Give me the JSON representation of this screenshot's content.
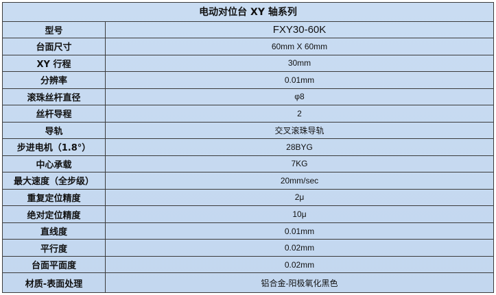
{
  "title": "电动对位台 XY 轴系列",
  "rows": [
    {
      "label": "型号",
      "value": "FXY30-60K"
    },
    {
      "label": "台面尺寸",
      "value": "60mm X 60mm"
    },
    {
      "label": "XY 行程",
      "value": "30mm"
    },
    {
      "label": "分辨率",
      "value": "0.01mm"
    },
    {
      "label": "滚珠丝杆直径",
      "value": "φ8"
    },
    {
      "label": "丝杆导程",
      "value": "2"
    },
    {
      "label": "导轨",
      "value": "交叉滚珠导轨"
    },
    {
      "label": "步进电机（1.8°）",
      "value": "28BYG"
    },
    {
      "label": "中心承载",
      "value": "7KG"
    },
    {
      "label": "最大速度（全步级）",
      "value": "20mm/sec"
    },
    {
      "label": "重复定位精度",
      "value": "2μ"
    },
    {
      "label": "绝对定位精度",
      "value": "10μ"
    },
    {
      "label": "直线度",
      "value": "0.01mm"
    },
    {
      "label": "平行度",
      "value": "0.02mm"
    },
    {
      "label": "台面平面度",
      "value": "0.02mm"
    },
    {
      "label": "材质-表面处理",
      "value": "铝合金-阳极氧化黑色"
    }
  ]
}
